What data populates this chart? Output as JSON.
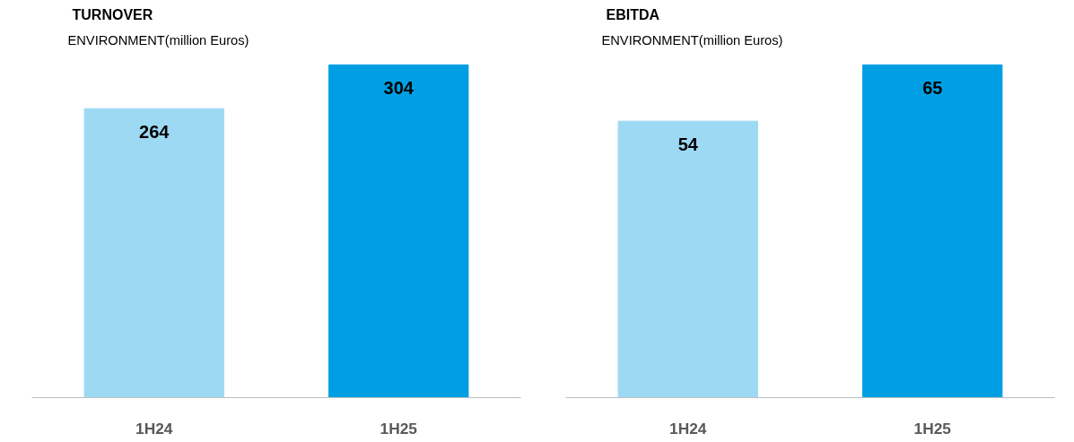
{
  "chart_data": [
    {
      "type": "bar",
      "title": "TURNOVER",
      "subtitle": "ENVIRONMENT(million Euros)",
      "categories": [
        "1H24",
        "1H25"
      ],
      "values": [
        264,
        304
      ],
      "colors": [
        "#9dd9f3",
        "#009fe3"
      ],
      "data_labels": true,
      "tick_labels": "x"
    },
    {
      "type": "bar",
      "title": "EBITDA",
      "subtitle": "ENVIRONMENT(million Euros)",
      "categories": [
        "1H24",
        "1H25"
      ],
      "values": [
        54,
        65
      ],
      "colors": [
        "#9dd9f3",
        "#009fe3"
      ],
      "data_labels": true,
      "tick_labels": "x"
    }
  ]
}
